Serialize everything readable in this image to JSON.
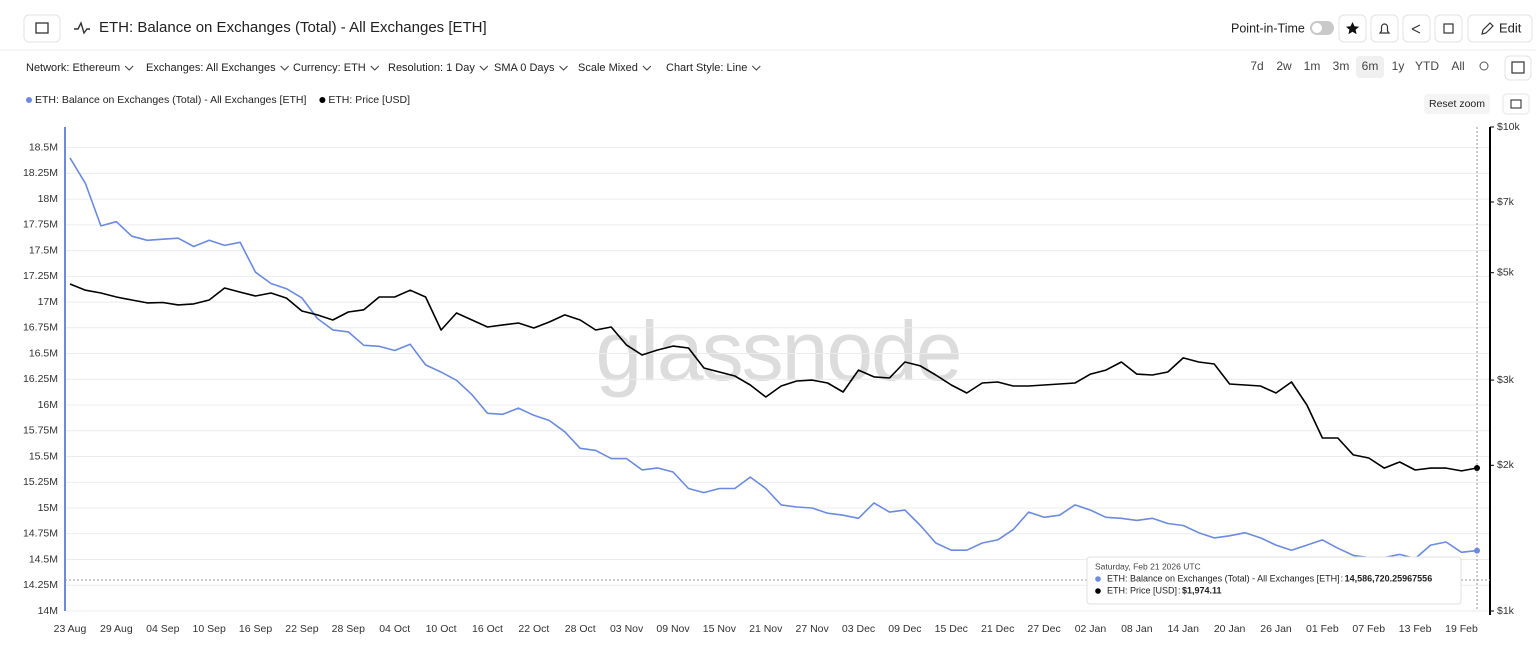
{
  "header": {
    "title": "ETH: Balance on Exchanges (Total) - All Exchanges [ETH]",
    "point_in_time": "Point-in-Time",
    "edit": "Edit"
  },
  "filters": [
    "Network: Ethereum",
    "Exchanges: All Exchanges",
    "Currency: ETH",
    "Resolution: 1 Day",
    "SMA 0 Days",
    "Scale Mixed",
    "Chart Style: Line"
  ],
  "ranges": [
    "7d",
    "2w",
    "1m",
    "3m",
    "6m",
    "1y",
    "YTD",
    "All"
  ],
  "active_range": 4,
  "reset_zoom": "Reset zoom",
  "chart_data": {
    "type": "line",
    "watermark": "glassnode",
    "categories": [
      "23 Aug",
      null,
      null,
      "29 Aug",
      null,
      null,
      "04 Sep",
      null,
      null,
      "10 Sep",
      null,
      null,
      "16 Sep",
      null,
      null,
      "22 Sep",
      null,
      null,
      "28 Sep",
      null,
      null,
      "04 Oct",
      null,
      null,
      "10 Oct",
      null,
      null,
      "16 Oct",
      null,
      null,
      "22 Oct",
      null,
      null,
      "28 Oct",
      null,
      null,
      "03 Nov",
      null,
      null,
      "09 Nov",
      null,
      null,
      "15 Nov",
      null,
      null,
      "21 Nov",
      null,
      null,
      "27 Nov",
      null,
      null,
      "03 Dec",
      null,
      null,
      "09 Dec",
      null,
      null,
      "15 Dec",
      null,
      null,
      "21 Dec",
      null,
      null,
      "27 Dec",
      null,
      null,
      "02 Jan",
      null,
      null,
      "08 Jan",
      null,
      null,
      "14 Jan",
      null,
      null,
      "20 Jan",
      null,
      null,
      "26 Jan",
      null,
      null,
      "01 Feb",
      null,
      null,
      "07 Feb",
      null,
      null,
      "13 Feb",
      null,
      null,
      "19 Feb",
      null
    ],
    "series": [
      {
        "name": "ETH: Balance on Exchanges (Total) - All Exchanges [ETH]",
        "color": "#6a8be0",
        "axis": "y",
        "values": [
          18400000,
          18150000,
          17740000,
          17780000,
          17640000,
          17600000,
          17610000,
          17620000,
          17540000,
          17600000,
          17550000,
          17580000,
          17290000,
          17180000,
          17130000,
          17040000,
          16840000,
          16730000,
          16710000,
          16580000,
          16570000,
          16530000,
          16590000,
          16390000,
          16320000,
          16240000,
          16100000,
          15920000,
          15910000,
          15970000,
          15900000,
          15850000,
          15740000,
          15580000,
          15560000,
          15480000,
          15480000,
          15370000,
          15390000,
          15350000,
          15190000,
          15150000,
          15190000,
          15190000,
          15300000,
          15190000,
          15030000,
          15010000,
          15000000,
          14950000,
          14930000,
          14900000,
          15050000,
          14960000,
          14980000,
          14830000,
          14660000,
          14590000,
          14590000,
          14660000,
          14690000,
          14790000,
          14960000,
          14910000,
          14930000,
          15030000,
          14980000,
          14910000,
          14900000,
          14880000,
          14900000,
          14850000,
          14830000,
          14760000,
          14710000,
          14730000,
          14760000,
          14710000,
          14640000,
          14590000,
          14640000,
          14690000,
          14610000,
          14540000,
          14520000,
          14520000,
          14550000,
          14510000,
          14640000,
          14670000,
          14570000,
          14586720.26
        ]
      },
      {
        "name": "ETH: Price [USD]",
        "color": "#000000",
        "axis": "y2",
        "values": [
          4738,
          4600,
          4540,
          4455,
          4390,
          4330,
          4340,
          4290,
          4310,
          4390,
          4650,
          4560,
          4475,
          4540,
          4430,
          4167,
          4090,
          3993,
          4147,
          4190,
          4455,
          4455,
          4600,
          4455,
          3807,
          4127,
          3993,
          3862,
          3900,
          3936,
          3843,
          3955,
          4090,
          3993,
          3807,
          3862,
          3543,
          3380,
          3462,
          3527,
          3494,
          3178,
          3117,
          3059,
          2930,
          2768,
          2917,
          2987,
          3000,
          2958,
          2835,
          3146,
          3045,
          3030,
          3270,
          3210,
          3073,
          2930,
          2821,
          2958,
          2972,
          2917,
          2917,
          2930,
          2944,
          2958,
          3087,
          3146,
          3270,
          3087,
          3073,
          3117,
          3333,
          3270,
          3238,
          2944,
          2930,
          2917,
          2821,
          2972,
          2665,
          2277,
          2277,
          2101,
          2071,
          1974,
          2032,
          1956,
          1974,
          1974,
          1947,
          1974.11
        ]
      }
    ],
    "ylim": [
      14000000,
      18700000
    ],
    "yticks": [
      {
        "value": 14000000,
        "label": "14M"
      },
      {
        "value": 14250000,
        "label": "14.25M"
      },
      {
        "value": 14500000,
        "label": "14.5M"
      },
      {
        "value": 14750000,
        "label": "14.75M"
      },
      {
        "value": 15000000,
        "label": "15M"
      },
      {
        "value": 15250000,
        "label": "15.25M"
      },
      {
        "value": 15500000,
        "label": "15.5M"
      },
      {
        "value": 15750000,
        "label": "15.75M"
      },
      {
        "value": 16000000,
        "label": "16M"
      },
      {
        "value": 16250000,
        "label": "16.25M"
      },
      {
        "value": 16500000,
        "label": "16.5M"
      },
      {
        "value": 16750000,
        "label": "16.75M"
      },
      {
        "value": 17000000,
        "label": "17M"
      },
      {
        "value": 17250000,
        "label": "17.25M"
      },
      {
        "value": 17500000,
        "label": "17.5M"
      },
      {
        "value": 17750000,
        "label": "17.75M"
      },
      {
        "value": 18000000,
        "label": "18M"
      },
      {
        "value": 18250000,
        "label": "18.25M"
      },
      {
        "value": 18500000,
        "label": "18.5M"
      }
    ],
    "y2lim": [
      1000,
      10000
    ],
    "y2scale": "log",
    "y2ticks": [
      {
        "value": 1000,
        "label": "$1k"
      },
      {
        "value": 2000,
        "label": "$2k"
      },
      {
        "value": 3000,
        "label": "$3k"
      },
      {
        "value": 5000,
        "label": "$5k"
      },
      {
        "value": 7000,
        "label": "$7k"
      },
      {
        "value": 10000,
        "label": "$10k"
      }
    ],
    "grid": true,
    "tooltip": {
      "title": "Saturday, Feb 21 2026 UTC",
      "value_labels": [
        "14,586,720.25967556",
        "$1,974.11"
      ]
    }
  }
}
